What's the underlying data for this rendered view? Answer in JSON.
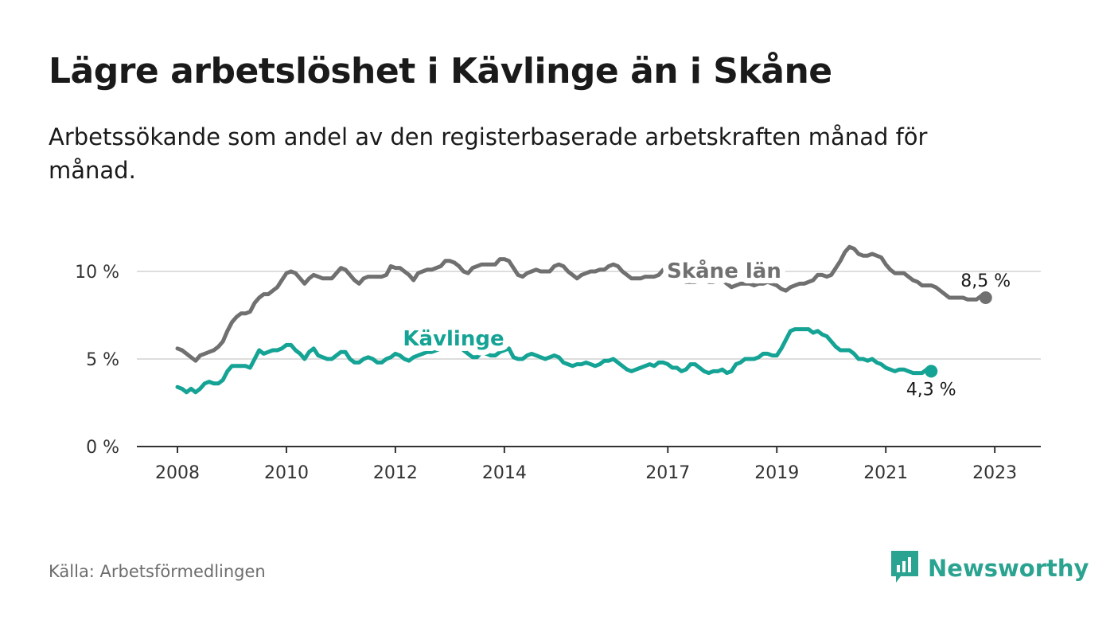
{
  "title": "Lägre arbetslöshet i Kävlinge än i Skåne",
  "subtitle": "Arbetssökande som andel av den registerbaserade arbetskraften månad för månad.",
  "source": "Källa: Arbetsförmedlingen",
  "brand": {
    "name": "Newsworthy",
    "icon": "newsworthy-logo-icon"
  },
  "colors": {
    "skane": "#707070",
    "kavlinge": "#14a394",
    "grid": "#dddddd",
    "axis": "#333333"
  },
  "chart_data": {
    "type": "line",
    "title": "Lägre arbetslöshet i Kävlinge än i Skåne",
    "xlabel": "",
    "ylabel": "",
    "xlim": [
      2008.0,
      2023.1
    ],
    "ylim": [
      0,
      12
    ],
    "x_ticks": [
      {
        "value": 2008,
        "label": "2008"
      },
      {
        "value": 2010,
        "label": "2010"
      },
      {
        "value": 2012,
        "label": "2012"
      },
      {
        "value": 2014,
        "label": "2014"
      },
      {
        "value": 2017,
        "label": "2017"
      },
      {
        "value": 2019,
        "label": "2019"
      },
      {
        "value": 2021,
        "label": "2021"
      },
      {
        "value": 2023,
        "label": "2023"
      }
    ],
    "y_ticks": [
      {
        "value": 0,
        "label": "0 %"
      },
      {
        "value": 5,
        "label": "5 %"
      },
      {
        "value": 10,
        "label": "10 %"
      }
    ],
    "x_start": 2008.0,
    "x_step_months": 1,
    "series": [
      {
        "name": "Skåne län",
        "color_key": "skane",
        "label_text": "Skåne län",
        "end_label": "8,5 %",
        "values": [
          5.6,
          5.5,
          5.3,
          5.1,
          4.9,
          5.2,
          5.3,
          5.4,
          5.5,
          5.7,
          6.0,
          6.6,
          7.1,
          7.4,
          7.6,
          7.6,
          7.7,
          8.2,
          8.5,
          8.7,
          8.7,
          8.9,
          9.1,
          9.5,
          9.9,
          10.0,
          9.9,
          9.6,
          9.3,
          9.6,
          9.8,
          9.7,
          9.6,
          9.6,
          9.6,
          9.9,
          10.2,
          10.1,
          9.8,
          9.5,
          9.3,
          9.6,
          9.7,
          9.7,
          9.7,
          9.7,
          9.8,
          10.3,
          10.2,
          10.2,
          10.0,
          9.8,
          9.5,
          9.9,
          10.0,
          10.1,
          10.1,
          10.2,
          10.3,
          10.6,
          10.6,
          10.5,
          10.3,
          10.0,
          9.9,
          10.2,
          10.3,
          10.4,
          10.4,
          10.4,
          10.4,
          10.7,
          10.7,
          10.6,
          10.2,
          9.8,
          9.7,
          9.9,
          10.0,
          10.1,
          10.0,
          10.0,
          10.0,
          10.3,
          10.4,
          10.3,
          10.0,
          9.8,
          9.6,
          9.8,
          9.9,
          10.0,
          10.0,
          10.1,
          10.1,
          10.3,
          10.4,
          10.3,
          10.0,
          9.8,
          9.6,
          9.6,
          9.6,
          9.7,
          9.7,
          9.7,
          9.8,
          10.1,
          10.0,
          9.8,
          9.6,
          9.5,
          9.4,
          9.4,
          9.4,
          9.5,
          9.5,
          9.4,
          9.4,
          9.5,
          9.5,
          9.3,
          9.1,
          9.2,
          9.3,
          9.3,
          9.3,
          9.2,
          9.3,
          9.3,
          9.4,
          9.3,
          9.2,
          9.0,
          8.9,
          9.1,
          9.2,
          9.3,
          9.3,
          9.4,
          9.5,
          9.8,
          9.8,
          9.7,
          9.8,
          10.2,
          10.6,
          11.1,
          11.4,
          11.3,
          11.0,
          10.9,
          10.9,
          11.0,
          10.9,
          10.8,
          10.4,
          10.1,
          9.9,
          9.9,
          9.9,
          9.7,
          9.5,
          9.4,
          9.2,
          9.2,
          9.2,
          9.1,
          8.9,
          8.7,
          8.5,
          8.5,
          8.5,
          8.5,
          8.4,
          8.4,
          8.4,
          8.6,
          8.5
        ]
      },
      {
        "name": "Kävlinge",
        "color_key": "kavlinge",
        "label_text": "Kävlinge",
        "end_label": "4,3 %",
        "values": [
          3.4,
          3.3,
          3.1,
          3.3,
          3.1,
          3.3,
          3.6,
          3.7,
          3.6,
          3.6,
          3.8,
          4.3,
          4.6,
          4.6,
          4.6,
          4.6,
          4.5,
          5.0,
          5.5,
          5.3,
          5.4,
          5.5,
          5.5,
          5.6,
          5.8,
          5.8,
          5.5,
          5.3,
          5.0,
          5.4,
          5.6,
          5.2,
          5.1,
          5.0,
          5.0,
          5.2,
          5.4,
          5.4,
          5.0,
          4.8,
          4.8,
          5.0,
          5.1,
          5.0,
          4.8,
          4.8,
          5.0,
          5.1,
          5.3,
          5.2,
          5.0,
          4.9,
          5.1,
          5.2,
          5.3,
          5.4,
          5.4,
          5.5,
          5.6,
          5.8,
          5.9,
          5.9,
          5.8,
          5.5,
          5.3,
          5.1,
          5.1,
          5.4,
          5.3,
          5.2,
          5.2,
          5.4,
          5.5,
          5.6,
          5.1,
          5.0,
          5.0,
          5.2,
          5.3,
          5.2,
          5.1,
          5.0,
          5.1,
          5.2,
          5.1,
          4.8,
          4.7,
          4.6,
          4.7,
          4.7,
          4.8,
          4.7,
          4.6,
          4.7,
          4.9,
          4.9,
          5.0,
          4.8,
          4.6,
          4.4,
          4.3,
          4.4,
          4.5,
          4.6,
          4.7,
          4.6,
          4.8,
          4.8,
          4.7,
          4.5,
          4.5,
          4.3,
          4.4,
          4.7,
          4.7,
          4.5,
          4.3,
          4.2,
          4.3,
          4.3,
          4.4,
          4.2,
          4.3,
          4.7,
          4.8,
          5.0,
          5.0,
          5.0,
          5.1,
          5.3,
          5.3,
          5.2,
          5.2,
          5.6,
          6.1,
          6.6,
          6.7,
          6.7,
          6.7,
          6.7,
          6.5,
          6.6,
          6.4,
          6.3,
          6.0,
          5.7,
          5.5,
          5.5,
          5.5,
          5.3,
          5.0,
          5.0,
          4.9,
          5.0,
          4.8,
          4.7,
          4.5,
          4.4,
          4.3,
          4.4,
          4.4,
          4.3,
          4.2,
          4.2,
          4.2,
          4.4,
          4.3
        ]
      }
    ]
  }
}
